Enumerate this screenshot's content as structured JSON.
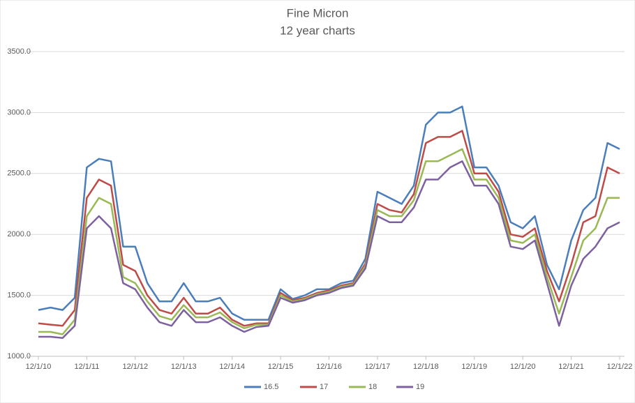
{
  "chart_data": {
    "type": "line",
    "title": "Fine Micron",
    "subtitle": "12 year charts",
    "x": [
      "12/1/10",
      "3/1/11",
      "6/1/11",
      "9/1/11",
      "12/1/11",
      "3/1/12",
      "6/1/12",
      "9/1/12",
      "12/1/12",
      "3/1/13",
      "6/1/13",
      "9/1/13",
      "12/1/13",
      "3/1/14",
      "6/1/14",
      "9/1/14",
      "12/1/14",
      "3/1/15",
      "6/1/15",
      "9/1/15",
      "12/1/15",
      "3/1/16",
      "6/1/16",
      "9/1/16",
      "12/1/16",
      "3/1/17",
      "6/1/17",
      "9/1/17",
      "12/1/17",
      "3/1/18",
      "6/1/18",
      "9/1/18",
      "12/1/18",
      "3/1/19",
      "6/1/19",
      "9/1/19",
      "12/1/19",
      "3/1/20",
      "6/1/20",
      "9/1/20",
      "12/1/20",
      "3/1/21",
      "6/1/21",
      "9/1/21",
      "12/1/21",
      "3/1/22",
      "6/1/22",
      "9/1/22",
      "12/1/22"
    ],
    "series": [
      {
        "name": "16.5",
        "color": "#4a7ebb",
        "values": [
          1380,
          1400,
          1380,
          1480,
          2550,
          2620,
          2600,
          1900,
          1900,
          1600,
          1450,
          1450,
          1600,
          1450,
          1450,
          1480,
          1350,
          1300,
          1300,
          1300,
          1550,
          1470,
          1500,
          1550,
          1550,
          1600,
          1620,
          1800,
          2350,
          2300,
          2250,
          2400,
          2900,
          3000,
          3000,
          3050,
          2550,
          2550,
          2400,
          2100,
          2050,
          2150,
          1750,
          1550,
          1950,
          2200,
          2300,
          2750,
          2700
        ]
      },
      {
        "name": "17",
        "color": "#be4b48",
        "values": [
          1270,
          1260,
          1250,
          1380,
          2300,
          2450,
          2400,
          1750,
          1700,
          1500,
          1380,
          1350,
          1480,
          1350,
          1350,
          1400,
          1300,
          1250,
          1270,
          1270,
          1520,
          1460,
          1480,
          1520,
          1540,
          1580,
          1600,
          1760,
          2250,
          2200,
          2180,
          2330,
          2750,
          2800,
          2800,
          2850,
          2500,
          2500,
          2350,
          2000,
          1980,
          2050,
          1700,
          1450,
          1750,
          2100,
          2150,
          2550,
          2500
        ]
      },
      {
        "name": "18",
        "color": "#98b954",
        "values": [
          1200,
          1200,
          1180,
          1300,
          2150,
          2300,
          2250,
          1650,
          1600,
          1450,
          1330,
          1300,
          1420,
          1320,
          1320,
          1360,
          1280,
          1230,
          1260,
          1260,
          1500,
          1450,
          1470,
          1510,
          1530,
          1570,
          1590,
          1740,
          2200,
          2150,
          2150,
          2280,
          2600,
          2600,
          2650,
          2700,
          2450,
          2450,
          2300,
          1950,
          1930,
          2000,
          1650,
          1350,
          1650,
          1950,
          2050,
          2300,
          2300
        ]
      },
      {
        "name": "19",
        "color": "#7d60a0",
        "values": [
          1160,
          1160,
          1150,
          1250,
          2050,
          2150,
          2050,
          1600,
          1550,
          1400,
          1280,
          1250,
          1380,
          1280,
          1280,
          1320,
          1250,
          1200,
          1240,
          1250,
          1480,
          1440,
          1460,
          1500,
          1520,
          1560,
          1580,
          1720,
          2150,
          2100,
          2100,
          2220,
          2450,
          2450,
          2550,
          2600,
          2400,
          2400,
          2250,
          1900,
          1880,
          1950,
          1600,
          1250,
          1580,
          1800,
          1900,
          2050,
          2100
        ]
      }
    ],
    "xlim": [
      "12/1/10",
      "12/1/22"
    ],
    "xticks": [
      "12/1/10",
      "12/1/11",
      "12/1/12",
      "12/1/13",
      "12/1/14",
      "12/1/15",
      "12/1/16",
      "12/1/17",
      "12/1/18",
      "12/1/19",
      "12/1/20",
      "12/1/21",
      "12/1/22"
    ],
    "ylim": [
      1000,
      3500
    ],
    "yticks": [
      {
        "value": 1000,
        "label": "1000.0"
      },
      {
        "value": 1500,
        "label": "1500.0"
      },
      {
        "value": 2000,
        "label": "2000.0"
      },
      {
        "value": 2500,
        "label": "2500.0"
      },
      {
        "value": 3000,
        "label": "3000.0"
      },
      {
        "value": 3500,
        "label": "3500.0"
      }
    ],
    "grid": true,
    "legend": "bottom"
  }
}
